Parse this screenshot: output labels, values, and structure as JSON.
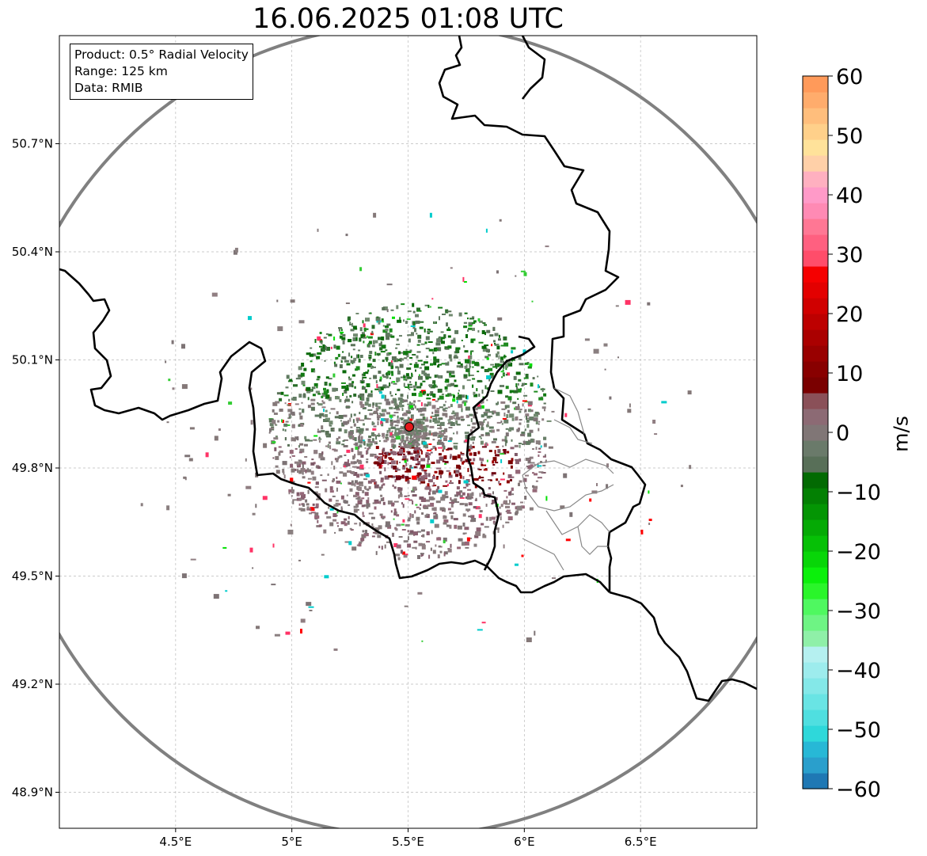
{
  "title": "16.06.2025 01:08 UTC",
  "info": {
    "product": "Product: 0.5° Radial Velocity",
    "range": "Range: 125 km",
    "source": "Data: RMIB"
  },
  "axes": {
    "lat_ticks": [
      "50.7°N",
      "50.4°N",
      "50.1°N",
      "49.8°N",
      "49.5°N",
      "49.2°N",
      "48.9°N"
    ],
    "lon_ticks": [
      "4.5°E",
      "5°E",
      "5.5°E",
      "6°E",
      "6.5°E"
    ],
    "lon_range": [
      4.0,
      7.0
    ],
    "lat_range": [
      48.8,
      51.0
    ]
  },
  "radar_site": {
    "lon": 5.505,
    "lat": 49.914,
    "marker_color": "#e41a1c"
  },
  "colorbar": {
    "label": "m/s",
    "ticks": [
      "60",
      "50",
      "40",
      "30",
      "20",
      "10",
      "0",
      "−10",
      "−20",
      "−30",
      "−40",
      "−50",
      "−60"
    ],
    "range": [
      -60,
      60
    ],
    "colors": [
      "#1f78b4",
      "#2a9fcc",
      "#27b8d6",
      "#2ed8da",
      "#4fdfe0",
      "#69e4e4",
      "#84e8e8",
      "#9deced",
      "#b5f0f0",
      "#8ff0a8",
      "#6ef484",
      "#4ff860",
      "#2af52a",
      "#0bf00b",
      "#08d608",
      "#06c006",
      "#05aa05",
      "#049504",
      "#038003",
      "#026a02",
      "#586f58",
      "#6a7a6a",
      "#807676",
      "#8c6a74",
      "#8a5058",
      "#7a0000",
      "#880000",
      "#990000",
      "#aa0000",
      "#bd0000",
      "#d00000",
      "#e30000",
      "#f50000",
      "#ff4d6a",
      "#ff6080",
      "#ff7794",
      "#ff8ab4",
      "#ff9ac8",
      "#ffb0c0",
      "#ffd0a8",
      "#ffe29a",
      "#ffd08a",
      "#ffbe7c",
      "#ffac6c",
      "#ff9a5a"
    ]
  }
}
